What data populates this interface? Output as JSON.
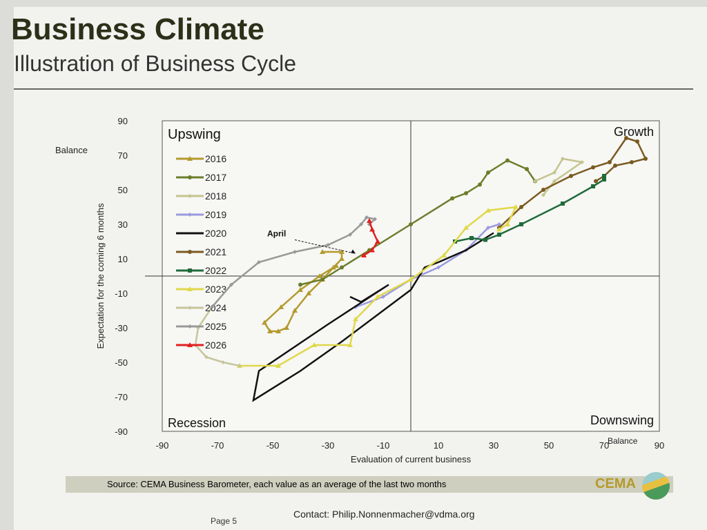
{
  "header": {
    "title": "Business Climate",
    "subtitle": "Illustration of Business Cycle"
  },
  "footer": {
    "source": "Source: CEMA Business Barometer, each value as an average of the last two months",
    "contact": "Contact: Philip.Nonnenmacher@vdma.org",
    "page": "Page 5",
    "logo": "CEMA"
  },
  "chart_data": {
    "type": "line",
    "xlabel": "Evaluation of current business",
    "ylabel": "Expectation for the coming 6 months",
    "x_balance_label": "Balance",
    "y_balance_label": "Balance",
    "xlim": [
      -90,
      90
    ],
    "ylim": [
      -90,
      90
    ],
    "xticks": [
      -90,
      -70,
      -50,
      -30,
      -10,
      10,
      30,
      50,
      70,
      90
    ],
    "yticks": [
      90,
      70,
      50,
      30,
      10,
      -10,
      -30,
      -50,
      -70,
      -90
    ],
    "quadrants": {
      "top_left": "Upswing",
      "top_right": "Growth",
      "bottom_right": "Downswing",
      "bottom_left": "Recession"
    },
    "legend_position": "top-left",
    "annotation": {
      "text": "April",
      "x": -20,
      "y": 13
    },
    "series": [
      {
        "name": "2016",
        "color": "#b39a2c",
        "marker": "triangle",
        "points": [
          [
            -32,
            14
          ],
          [
            -25,
            14
          ],
          [
            -25,
            10
          ],
          [
            -28,
            5
          ],
          [
            -32,
            -2
          ],
          [
            -37,
            -10
          ],
          [
            -42,
            -20
          ],
          [
            -45,
            -30
          ],
          [
            -48,
            -32
          ],
          [
            -51,
            -32
          ],
          [
            -53,
            -27
          ],
          [
            -47,
            -18
          ],
          [
            -40,
            -8
          ],
          [
            -33,
            0
          ],
          [
            -27,
            6
          ]
        ]
      },
      {
        "name": "2017",
        "color": "#6b7d2a",
        "marker": "circle",
        "points": [
          [
            -40,
            -5
          ],
          [
            -32,
            -2
          ],
          [
            -25,
            5
          ],
          [
            -15,
            15
          ],
          [
            0,
            30
          ],
          [
            15,
            45
          ],
          [
            20,
            48
          ],
          [
            25,
            53
          ],
          [
            28,
            60
          ],
          [
            35,
            67
          ],
          [
            42,
            62
          ],
          [
            45,
            55
          ]
        ]
      },
      {
        "name": "2018",
        "color": "#c4c48e",
        "marker": "diamond",
        "points": [
          [
            45,
            55
          ],
          [
            52,
            60
          ],
          [
            55,
            68
          ],
          [
            62,
            66
          ],
          [
            52,
            55
          ],
          [
            48,
            47
          ]
        ]
      },
      {
        "name": "2019",
        "color": "#9a9ae0",
        "marker": "diamond",
        "points": [
          [
            -20,
            -18
          ],
          [
            -10,
            -12
          ],
          [
            0,
            -2
          ],
          [
            10,
            5
          ],
          [
            20,
            15
          ],
          [
            28,
            28
          ],
          [
            32,
            30
          ]
        ]
      },
      {
        "name": "2020",
        "color": "#111111",
        "marker": "none",
        "points": [
          [
            -22,
            -12
          ],
          [
            -18,
            -15
          ],
          [
            -8,
            -5
          ],
          [
            -30,
            -28
          ],
          [
            -55,
            -55
          ],
          [
            -57,
            -72
          ],
          [
            -40,
            -55
          ],
          [
            -25,
            -38
          ],
          [
            -10,
            -20
          ],
          [
            0,
            -8
          ],
          [
            5,
            5
          ],
          [
            10,
            8
          ],
          [
            20,
            15
          ],
          [
            30,
            25
          ]
        ]
      },
      {
        "name": "2021",
        "color": "#7a5a20",
        "marker": "circle",
        "points": [
          [
            32,
            28
          ],
          [
            40,
            40
          ],
          [
            48,
            50
          ],
          [
            58,
            58
          ],
          [
            66,
            63
          ],
          [
            72,
            66
          ],
          [
            78,
            80
          ],
          [
            82,
            78
          ],
          [
            85,
            68
          ],
          [
            80,
            66
          ],
          [
            74,
            64
          ],
          [
            70,
            58
          ],
          [
            67,
            55
          ]
        ]
      },
      {
        "name": "2022",
        "color": "#1f6b3a",
        "marker": "square",
        "points": [
          [
            16,
            20
          ],
          [
            22,
            22
          ],
          [
            27,
            21
          ],
          [
            32,
            24
          ],
          [
            40,
            30
          ],
          [
            55,
            42
          ],
          [
            66,
            52
          ],
          [
            70,
            56
          ],
          [
            70,
            58
          ]
        ]
      },
      {
        "name": "2023",
        "color": "#e0d84a",
        "marker": "triangle",
        "points": [
          [
            -62,
            -52
          ],
          [
            -48,
            -52
          ],
          [
            -35,
            -40
          ],
          [
            -22,
            -40
          ],
          [
            -20,
            -25
          ],
          [
            -12,
            -12
          ],
          [
            0,
            -2
          ],
          [
            12,
            12
          ],
          [
            20,
            28
          ],
          [
            28,
            38
          ],
          [
            38,
            40
          ],
          [
            35,
            30
          ],
          [
            32,
            27
          ]
        ]
      },
      {
        "name": "2024",
        "color": "#c6c69c",
        "marker": "diamond",
        "points": [
          [
            -72,
            -18
          ],
          [
            -77,
            -30
          ],
          [
            -78,
            -40
          ],
          [
            -74,
            -47
          ],
          [
            -68,
            -50
          ],
          [
            -62,
            -52
          ]
        ]
      },
      {
        "name": "2025",
        "color": "#999999",
        "marker": "diamond",
        "points": [
          [
            -72,
            -18
          ],
          [
            -65,
            -5
          ],
          [
            -55,
            8
          ],
          [
            -42,
            14
          ],
          [
            -30,
            18
          ],
          [
            -22,
            24
          ],
          [
            -18,
            30
          ],
          [
            -16,
            34
          ],
          [
            -13,
            33
          ],
          [
            -15,
            30
          ]
        ]
      },
      {
        "name": "2026",
        "color": "#e02020",
        "marker": "triangle",
        "points": [
          [
            -15,
            32
          ],
          [
            -14,
            27
          ],
          [
            -12,
            20
          ],
          [
            -14,
            15
          ],
          [
            -17,
            12
          ]
        ]
      }
    ]
  }
}
